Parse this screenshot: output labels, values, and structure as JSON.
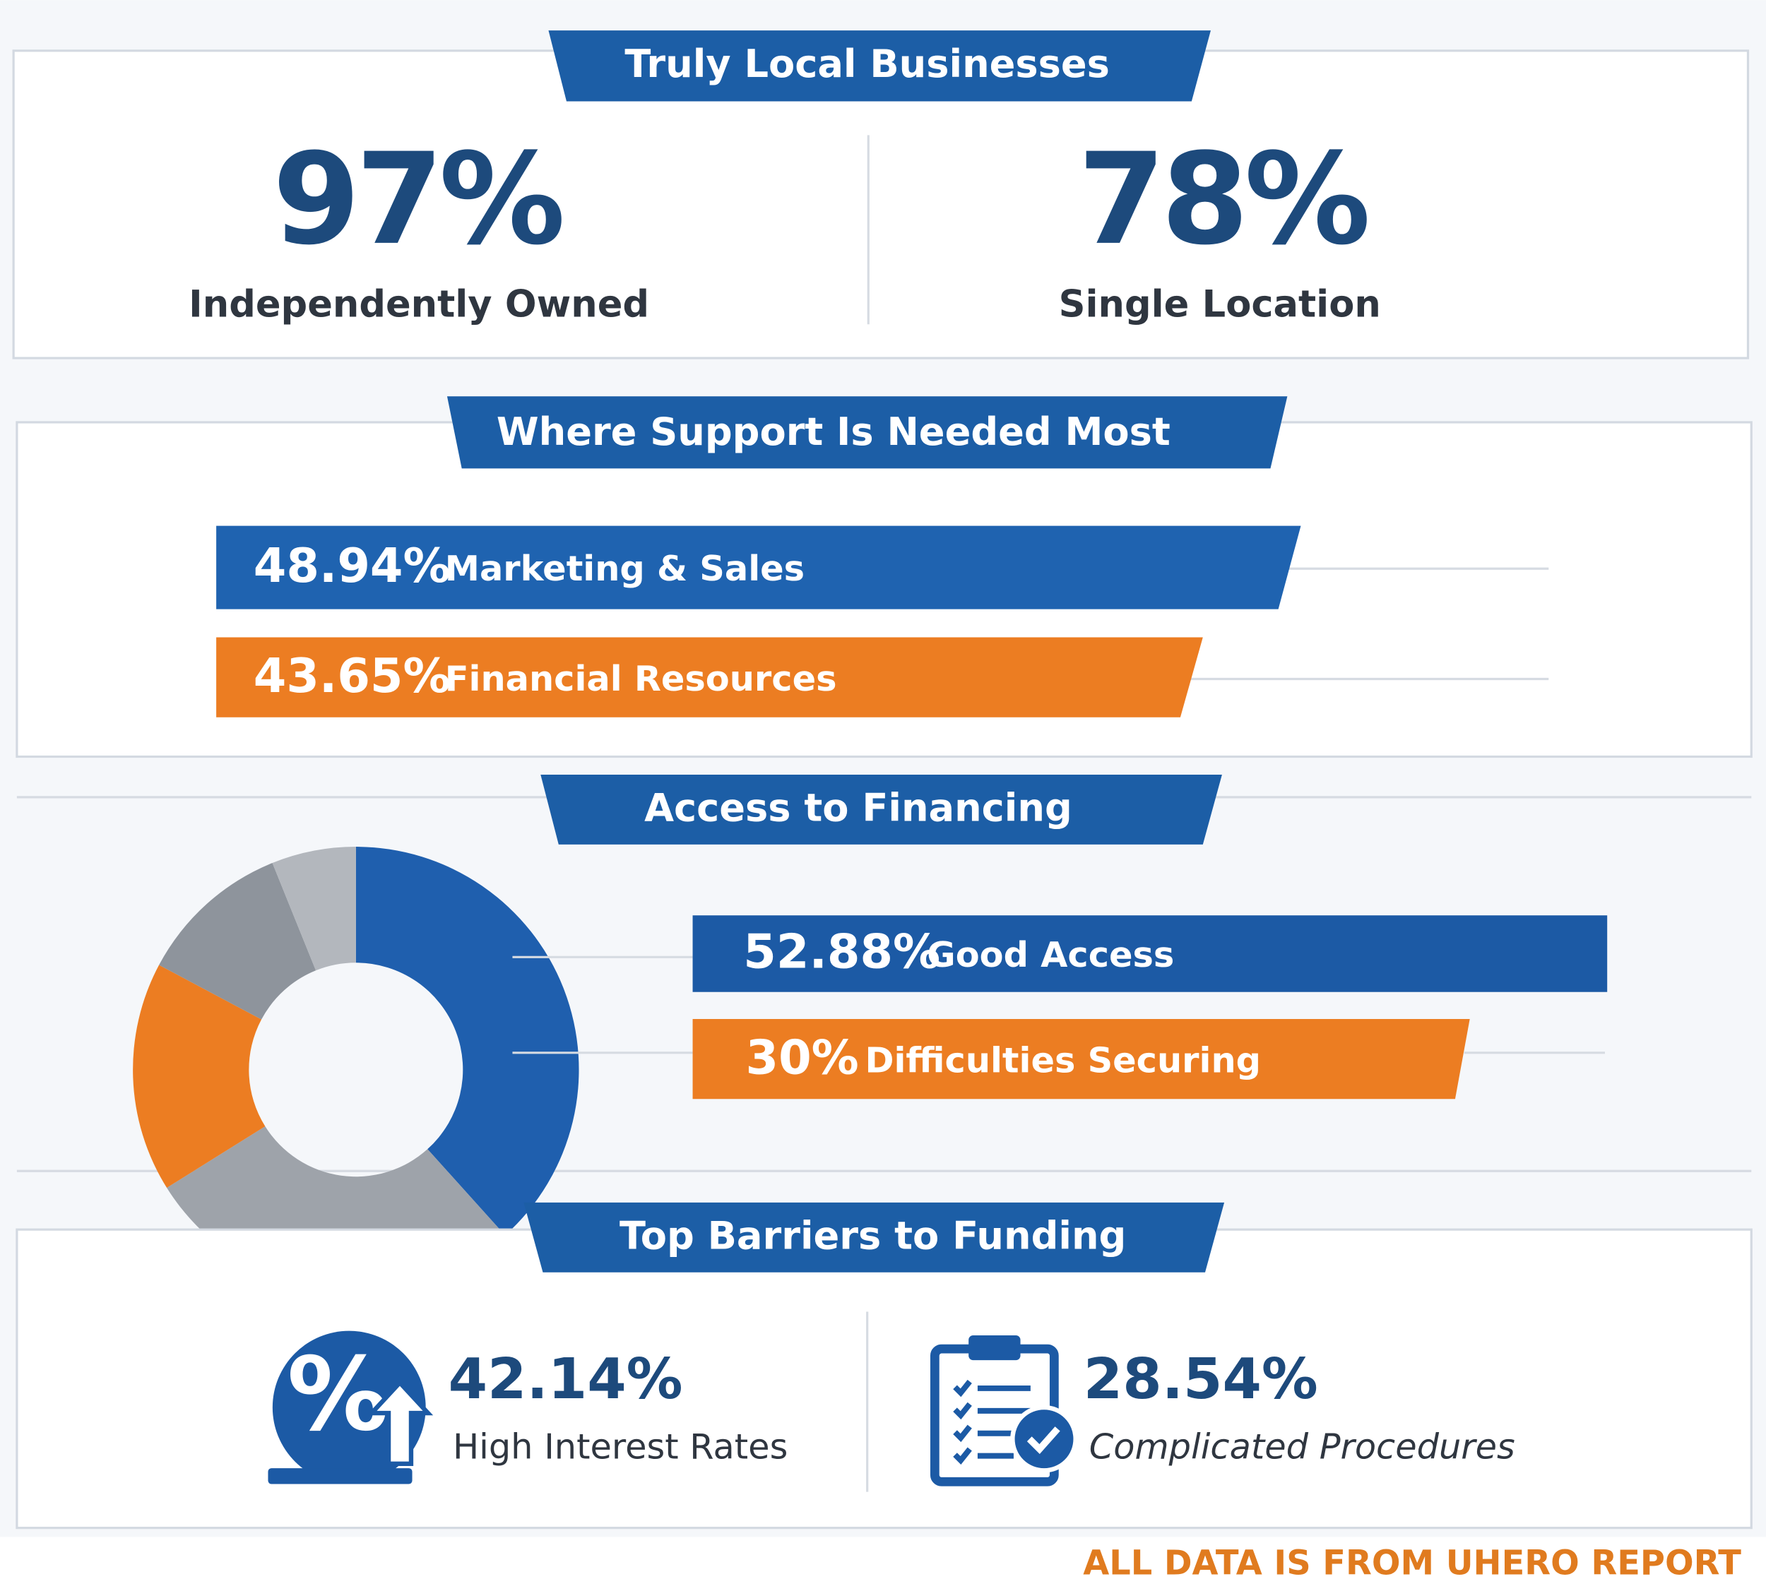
{
  "sections": [
    {
      "title": "Truly Local Businesses",
      "stats": [
        {
          "value": "97%",
          "label": "Independently Owned"
        },
        {
          "value": "78%",
          "label": "Single Location"
        }
      ]
    },
    {
      "title": "Where Support Is Needed Most",
      "bars": [
        {
          "value": "48.94%",
          "label": "Marketing & Sales"
        },
        {
          "value": "43.65%",
          "label": "Financial Resources"
        }
      ]
    },
    {
      "title": "Access to Financing",
      "bars": [
        {
          "value": "52.88%",
          "label": "Good Access"
        },
        {
          "value": "30%",
          "label": "Difficulties Securing"
        }
      ]
    },
    {
      "title": "Top Barriers to Funding",
      "stats": [
        {
          "value": "42.14%",
          "label": "High Interest Rates"
        },
        {
          "value": "28.54%",
          "label": "Complicated Procedures"
        }
      ]
    }
  ],
  "footer": "ALL DATA IS FROM UHERO REPORT"
}
